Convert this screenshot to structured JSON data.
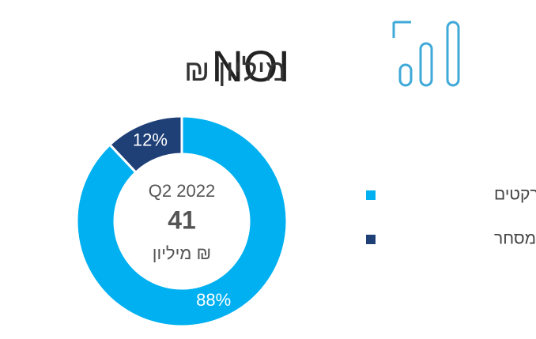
{
  "chart_data": {
    "type": "donut",
    "title": "NOI",
    "subtitle": "מיליון ₪",
    "center_text": [
      "Q2 2022",
      "41",
      "מיליון ₪"
    ],
    "categories": [
      "סופרמרקטים",
      "שטחי מסחר"
    ],
    "values": [
      88,
      12
    ],
    "value_labels": [
      "88%",
      "12%"
    ],
    "colors": [
      "#00b0f0",
      "#1f3f77"
    ],
    "legend": "right"
  }
}
